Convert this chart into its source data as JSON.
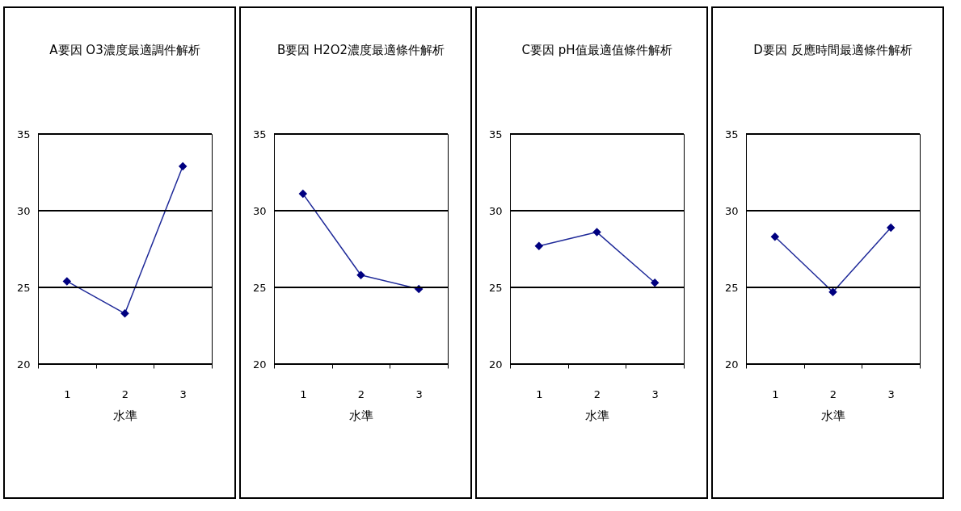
{
  "chart_data": [
    {
      "type": "line",
      "title": "A要因 O3濃度最適調件解析",
      "xlabel": "水準",
      "categories": [
        "1",
        "2",
        "3"
      ],
      "series": [
        {
          "color": "#1f2a99",
          "values": [
            25.4,
            23.3,
            32.9
          ]
        }
      ],
      "ylim": [
        20,
        35
      ],
      "yticks": [
        20,
        25,
        30,
        35
      ],
      "grid": "y",
      "marker": "diamond"
    },
    {
      "type": "line",
      "title": "B要因 H2O2濃度最適條件解析",
      "xlabel": "水準",
      "categories": [
        "1",
        "2",
        "3"
      ],
      "series": [
        {
          "color": "#1f2a99",
          "values": [
            31.1,
            25.8,
            24.9
          ]
        }
      ],
      "ylim": [
        20,
        35
      ],
      "yticks": [
        20,
        25,
        30,
        35
      ],
      "grid": "y",
      "marker": "diamond"
    },
    {
      "type": "line",
      "title": "C要因 pH值最適值條件解析",
      "xlabel": "水準",
      "categories": [
        "1",
        "2",
        "3"
      ],
      "series": [
        {
          "color": "#1f2a99",
          "values": [
            27.7,
            28.6,
            25.3
          ]
        }
      ],
      "ylim": [
        20,
        35
      ],
      "yticks": [
        20,
        25,
        30,
        35
      ],
      "grid": "y",
      "marker": "diamond"
    },
    {
      "type": "line",
      "title": "D要因 反應時間最適條件解析",
      "xlabel": "水準",
      "categories": [
        "1",
        "2",
        "3"
      ],
      "series": [
        {
          "color": "#1f2a99",
          "values": [
            28.3,
            24.7,
            28.9
          ]
        }
      ],
      "ylim": [
        20,
        35
      ],
      "yticks": [
        20,
        25,
        30,
        35
      ],
      "grid": "y",
      "marker": "diamond"
    }
  ]
}
